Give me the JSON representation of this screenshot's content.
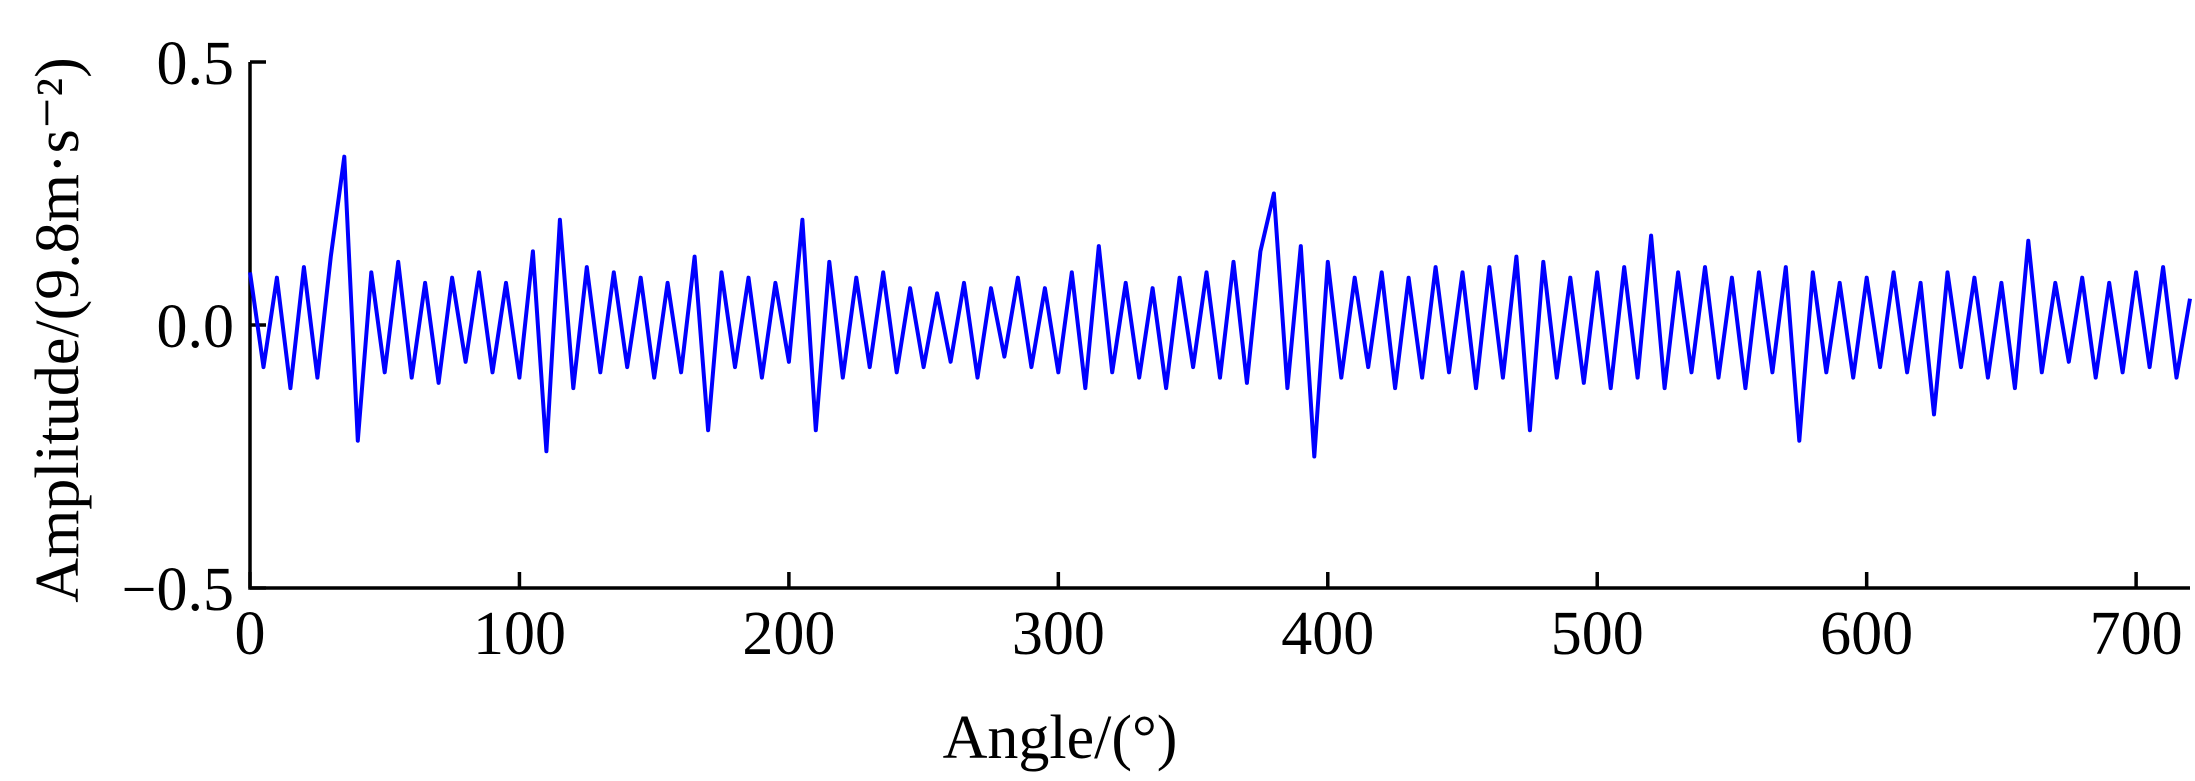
{
  "chart_data": {
    "type": "line",
    "xlabel": "Angle/(°)",
    "ylabel": "Amplitude/(9.8m·s⁻²)",
    "xlim": [
      0,
      720
    ],
    "xticks": [
      0,
      100,
      200,
      300,
      400,
      500,
      600,
      700
    ],
    "ylim": [
      -0.5,
      0.5
    ],
    "yticks": [
      {
        "value": -0.5,
        "label": "−0.5"
      },
      {
        "value": 0,
        "label": "0.0"
      },
      0.5
    ],
    "grid": false,
    "x": [
      0,
      5,
      10,
      15,
      20,
      25,
      30,
      35,
      40,
      45,
      50,
      55,
      60,
      65,
      70,
      75,
      80,
      85,
      90,
      95,
      100,
      105,
      110,
      115,
      120,
      125,
      130,
      135,
      140,
      145,
      150,
      155,
      160,
      165,
      170,
      175,
      180,
      185,
      190,
      195,
      200,
      205,
      210,
      215,
      220,
      225,
      230,
      235,
      240,
      245,
      250,
      255,
      260,
      265,
      270,
      275,
      280,
      285,
      290,
      295,
      300,
      305,
      310,
      315,
      320,
      325,
      330,
      335,
      340,
      345,
      350,
      355,
      360,
      365,
      370,
      375,
      380,
      385,
      390,
      395,
      400,
      405,
      410,
      415,
      420,
      425,
      430,
      435,
      440,
      445,
      450,
      455,
      460,
      465,
      470,
      475,
      480,
      485,
      490,
      495,
      500,
      505,
      510,
      515,
      520,
      525,
      530,
      535,
      540,
      545,
      550,
      555,
      560,
      565,
      570,
      575,
      580,
      585,
      590,
      595,
      600,
      605,
      610,
      615,
      620,
      625,
      630,
      635,
      640,
      645,
      650,
      655,
      660,
      665,
      670,
      675,
      680,
      685,
      690,
      695,
      700,
      705,
      710,
      715,
      720
    ],
    "series": [
      {
        "color": "#0000ff",
        "values": [
          0.1,
          -0.08,
          0.09,
          -0.12,
          0.11,
          -0.1,
          0.13,
          0.32,
          -0.22,
          0.1,
          -0.09,
          0.12,
          -0.1,
          0.08,
          -0.11,
          0.09,
          -0.07,
          0.1,
          -0.09,
          0.08,
          -0.1,
          0.14,
          -0.24,
          0.2,
          -0.12,
          0.11,
          -0.09,
          0.1,
          -0.08,
          0.09,
          -0.1,
          0.08,
          -0.09,
          0.13,
          -0.2,
          0.1,
          -0.08,
          0.09,
          -0.1,
          0.08,
          -0.07,
          0.2,
          -0.2,
          0.12,
          -0.1,
          0.09,
          -0.08,
          0.1,
          -0.09,
          0.07,
          -0.08,
          0.06,
          -0.07,
          0.08,
          -0.1,
          0.07,
          -0.06,
          0.09,
          -0.08,
          0.07,
          -0.09,
          0.1,
          -0.12,
          0.15,
          -0.09,
          0.08,
          -0.1,
          0.07,
          -0.12,
          0.09,
          -0.08,
          0.1,
          -0.1,
          0.12,
          -0.11,
          0.14,
          0.25,
          -0.12,
          0.15,
          -0.25,
          0.12,
          -0.1,
          0.09,
          -0.08,
          0.1,
          -0.12,
          0.09,
          -0.1,
          0.11,
          -0.09,
          0.1,
          -0.12,
          0.11,
          -0.1,
          0.13,
          -0.2,
          0.12,
          -0.1,
          0.09,
          -0.11,
          0.1,
          -0.12,
          0.11,
          -0.1,
          0.17,
          -0.12,
          0.1,
          -0.09,
          0.11,
          -0.1,
          0.09,
          -0.12,
          0.1,
          -0.09,
          0.11,
          -0.22,
          0.1,
          -0.09,
          0.08,
          -0.1,
          0.09,
          -0.08,
          0.1,
          -0.09,
          0.08,
          -0.17,
          0.1,
          -0.08,
          0.09,
          -0.1,
          0.08,
          -0.12,
          0.16,
          -0.09,
          0.08,
          -0.07,
          0.09,
          -0.1,
          0.08,
          -0.09,
          0.1,
          -0.08,
          0.11,
          -0.1,
          0.05
        ]
      }
    ]
  }
}
